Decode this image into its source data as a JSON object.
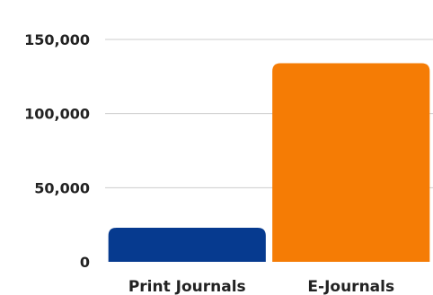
{
  "chart_data": {
    "type": "bar",
    "categories": [
      "Print Journals",
      "E-Journals"
    ],
    "values": [
      23000,
      134000
    ],
    "colors": [
      "#063a8f",
      "#f57c05"
    ],
    "ylim": [
      0,
      150000
    ],
    "yticks": [
      0,
      50000,
      100000,
      150000
    ],
    "ytick_labels": [
      "0",
      "50,000",
      "100,000",
      "150,000"
    ],
    "grid": true,
    "legend": "none"
  }
}
